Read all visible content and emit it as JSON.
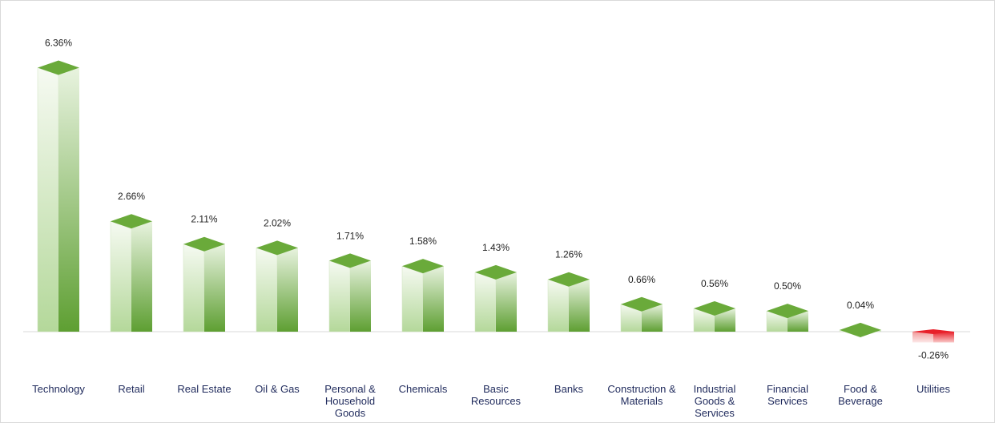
{
  "chart_data": {
    "type": "bar",
    "title": "",
    "xlabel": "",
    "ylabel": "",
    "ylim": [
      -0.3,
      6.4
    ],
    "grid": false,
    "legend": "none",
    "categories": [
      [
        "Technology"
      ],
      [
        "Retail"
      ],
      [
        "Real Estate"
      ],
      [
        "Oil & Gas"
      ],
      [
        "Personal &",
        "Household",
        "Goods"
      ],
      [
        "Chemicals"
      ],
      [
        "Basic",
        "Resources"
      ],
      [
        "Banks"
      ],
      [
        "Construction &",
        "Materials"
      ],
      [
        "Industrial",
        "Goods &",
        "Services"
      ],
      [
        "Financial",
        "Services"
      ],
      [
        "Food &",
        "Beverage"
      ],
      [
        "Utilities"
      ]
    ],
    "values": [
      6.36,
      2.66,
      2.11,
      2.02,
      1.71,
      1.58,
      1.43,
      1.26,
      0.66,
      0.56,
      0.5,
      0.04,
      -0.26
    ],
    "value_labels": [
      "6.36%",
      "2.66%",
      "2.11%",
      "2.02%",
      "1.71%",
      "1.58%",
      "1.43%",
      "1.26%",
      "0.66%",
      "0.56%",
      "0.50%",
      "0.04%",
      "-0.26%"
    ],
    "colors": {
      "positive": "#6aaa3a",
      "positive_light": "#f4f9ef",
      "negative": "#e8202a",
      "negative_light": "#fbe4e4",
      "axis": "#d9d9d9"
    }
  }
}
